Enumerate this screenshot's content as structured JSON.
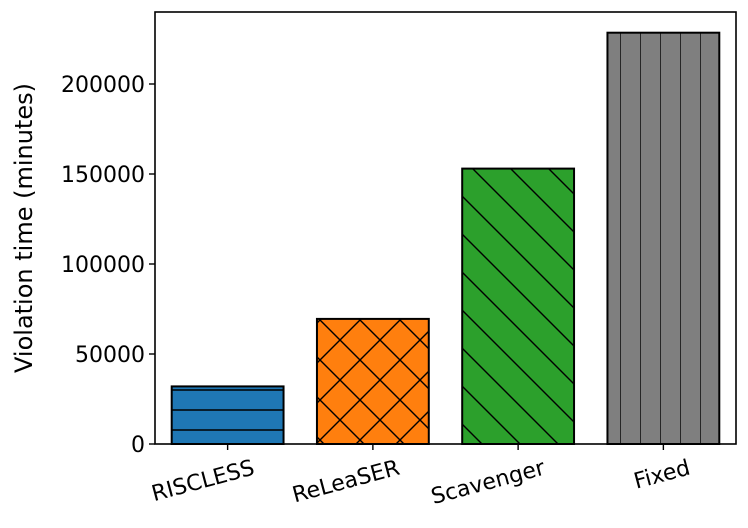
{
  "chart_data": {
    "type": "bar",
    "title": "",
    "xlabel": "",
    "ylabel": "Violation time (minutes)",
    "categories": [
      "RISCLESS",
      "ReLeaSER",
      "Scavenger",
      "Fixed"
    ],
    "values": [
      32000,
      69500,
      153000,
      228500
    ],
    "colors": [
      "#1f77b4",
      "#ff7f0e",
      "#2ca02c",
      "#7f7f7f"
    ],
    "hatches": [
      "horizontal",
      "crosshatch",
      "diagonal",
      "vertical"
    ],
    "ylim": [
      0,
      240000
    ],
    "yticks": [
      0,
      50000,
      100000,
      150000,
      200000
    ],
    "yticklabels": [
      "0",
      "50000",
      "100000",
      "150000",
      "200000"
    ],
    "grid": false,
    "legend": "none"
  }
}
